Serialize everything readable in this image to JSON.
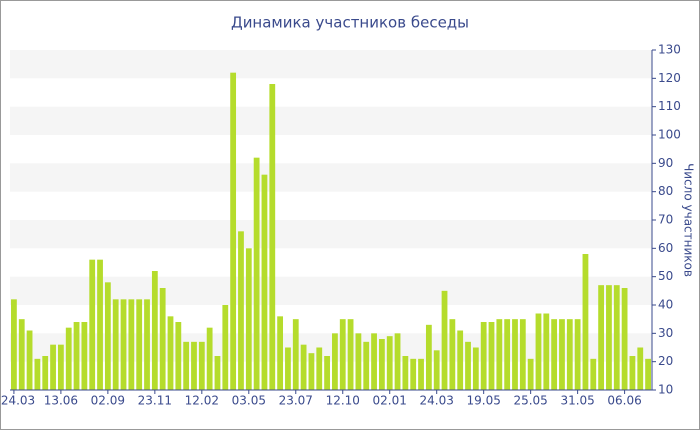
{
  "chart_data": {
    "type": "bar",
    "title": "Динамика участников беседы",
    "ylabel": "Число участников",
    "categories": [
      "24.03",
      null,
      null,
      null,
      null,
      null,
      "13.06",
      null,
      null,
      null,
      null,
      null,
      "02.09",
      null,
      null,
      null,
      null,
      null,
      "23.11",
      null,
      null,
      null,
      null,
      null,
      "12.02",
      null,
      null,
      null,
      null,
      null,
      "03.05",
      null,
      null,
      null,
      null,
      null,
      "23.07",
      null,
      null,
      null,
      null,
      null,
      "12.10",
      null,
      null,
      null,
      null,
      null,
      "02.01",
      null,
      null,
      null,
      null,
      null,
      "24.03",
      null,
      null,
      null,
      null,
      null,
      "19.05",
      null,
      null,
      null,
      null,
      null,
      "25.05",
      null,
      null,
      null,
      null,
      null,
      "31.05",
      null,
      null,
      null,
      null,
      null,
      "06.06",
      null,
      null,
      null
    ],
    "values": [
      42,
      35,
      31,
      21,
      22,
      26,
      26,
      32,
      34,
      34,
      56,
      56,
      48,
      42,
      42,
      42,
      42,
      42,
      52,
      46,
      36,
      34,
      27,
      27,
      27,
      32,
      22,
      40,
      122,
      66,
      60,
      92,
      86,
      118,
      36,
      25,
      35,
      26,
      23,
      25,
      22,
      30,
      35,
      35,
      30,
      27,
      30,
      28,
      29,
      30,
      22,
      21,
      21,
      33,
      24,
      45,
      35,
      31,
      27,
      25,
      34,
      34,
      35,
      35,
      35,
      35,
      21,
      37,
      37,
      35,
      35,
      35,
      35,
      58,
      21,
      47,
      47,
      47,
      46,
      22,
      25,
      21
    ],
    "color": "#b5dc2c",
    "ylim": [
      10,
      130
    ],
    "yticks": [
      10,
      20,
      30,
      40,
      50,
      60,
      70,
      80,
      90,
      100,
      110,
      120,
      130
    ],
    "grid": "bands"
  }
}
